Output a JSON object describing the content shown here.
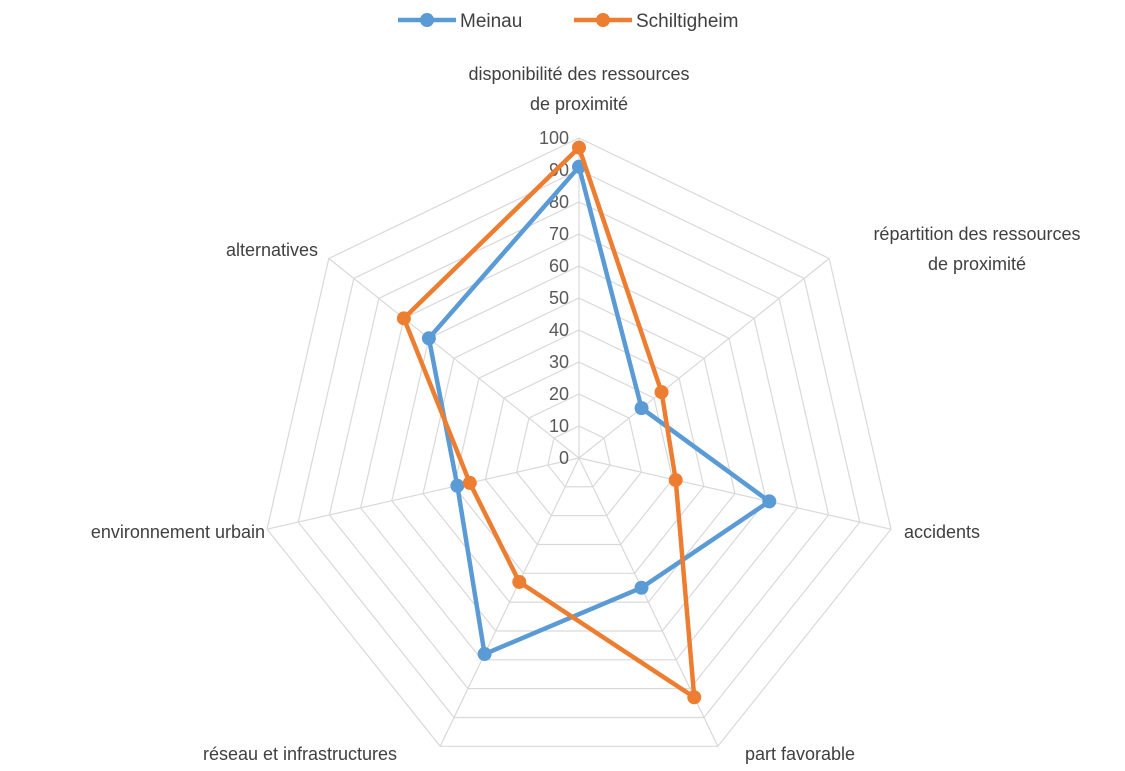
{
  "chart_data": {
    "type": "radar",
    "categories": [
      "disponibilité des ressources de proximité",
      "répartition des ressources de proximité",
      "accidents",
      "part favorable",
      "réseau et infrastructures",
      "environnement urbain",
      "alternatives"
    ],
    "category_lines": [
      [
        "disponibilité des ressources",
        "de proximité"
      ],
      [
        "répartition des ressources",
        "de proximité"
      ],
      [
        "accidents"
      ],
      [
        "part favorable"
      ],
      [
        "réseau et infrastructures"
      ],
      [
        "environnement urbain"
      ],
      [
        "alternatives"
      ]
    ],
    "series": [
      {
        "name": "Meinau",
        "color": "#5b9bd5",
        "values": [
          91,
          25,
          61,
          45,
          68,
          39,
          60
        ]
      },
      {
        "name": "Schiltigheim",
        "color": "#ed7d31",
        "values": [
          97,
          33,
          31,
          83,
          43,
          35,
          70
        ]
      }
    ],
    "ticks": [
      "0",
      "10",
      "20",
      "30",
      "40",
      "50",
      "60",
      "70",
      "80",
      "90",
      "100"
    ],
    "rlim": [
      0,
      100
    ],
    "grid": true,
    "legend": "top"
  }
}
